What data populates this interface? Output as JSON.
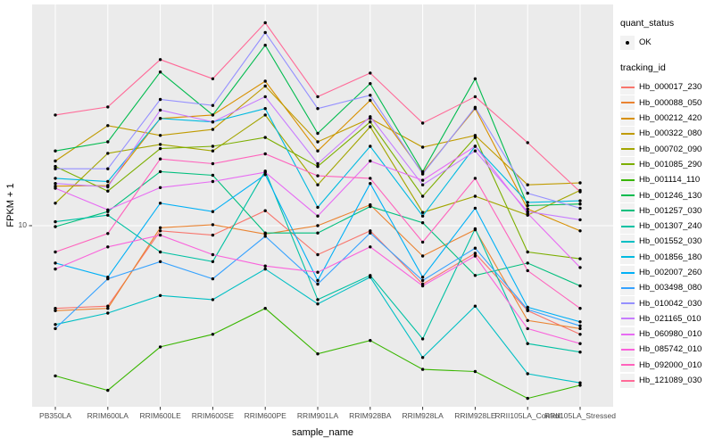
{
  "chart_data": {
    "type": "line",
    "title": "",
    "xlabel": "sample_name",
    "ylabel": "FPKM + 1",
    "y_scale": "log10",
    "y_ticks": [
      10
    ],
    "y_tick_labels": [
      "10"
    ],
    "ylim": [
      1.6,
      90
    ],
    "grid": {
      "vertical": "one white line per category",
      "horizontal": "single white line at y=10"
    },
    "panel_bg": "#EBEBEB",
    "gridline_color": "#FFFFFF",
    "point": {
      "shape": "filled-circle",
      "color": "#000000"
    },
    "legend": {
      "position": "right",
      "quant_status_title": "quant_status",
      "ok_label": "OK",
      "series_title": "tracking_id"
    },
    "categories": [
      "PB350LA",
      "RRIM600LA",
      "RRIM600LE",
      "RRIM600SE",
      "RRIM600PE",
      "RRIM901LA",
      "RRIM928BA",
      "RRIM928LA",
      "RRIM928LE",
      "RRII105LA_Control",
      "RRII105LA_Stressed"
    ],
    "series": [
      {
        "name": "Hb_000017_230",
        "color": "#F8766D",
        "values": [
          4.4,
          4.5,
          9.5,
          9.1,
          11.6,
          7.5,
          9.5,
          5.6,
          7.6,
          4.3,
          3.4
        ]
      },
      {
        "name": "Hb_000088_050",
        "color": "#EA8331",
        "values": [
          4.3,
          4.4,
          9.8,
          10.1,
          9.2,
          10.0,
          12.3,
          7.4,
          9.6,
          3.9,
          3.6
        ]
      },
      {
        "name": "Hb_000212_420",
        "color": "#D89000",
        "values": [
          14.8,
          14.9,
          29.0,
          30.0,
          42.0,
          21.0,
          34.7,
          16.9,
          32.0,
          11.8,
          9.5
        ]
      },
      {
        "name": "Hb_000322_080",
        "color": "#C09B00",
        "values": [
          19.0,
          27.0,
          24.5,
          26.0,
          40.0,
          23.0,
          29.0,
          21.8,
          24.5,
          15.0,
          15.3
        ]
      },
      {
        "name": "Hb_000702_090",
        "color": "#A3A500",
        "values": [
          12.5,
          20.5,
          22.4,
          21.0,
          30.0,
          15.0,
          26.7,
          11.4,
          13.4,
          11.1,
          14.2
        ]
      },
      {
        "name": "Hb_001085_290",
        "color": "#7CAE00",
        "values": [
          18.0,
          14.1,
          21.5,
          22.0,
          24.0,
          18.0,
          28.0,
          13.4,
          24.0,
          7.7,
          7.2
        ]
      },
      {
        "name": "Hb_001114_110",
        "color": "#39B600",
        "values": [
          2.25,
          1.95,
          3.0,
          3.4,
          4.4,
          2.8,
          3.2,
          2.4,
          2.35,
          1.8,
          2.05
        ]
      },
      {
        "name": "Hb_001246_130",
        "color": "#00BB4E",
        "values": [
          21.0,
          23.0,
          46.0,
          30.0,
          60.0,
          25.0,
          41.0,
          17.1,
          43.0,
          12.2,
          12.4
        ]
      },
      {
        "name": "Hb_001257_030",
        "color": "#00BF7D",
        "values": [
          9.9,
          11.5,
          17.1,
          16.5,
          9.3,
          9.3,
          12.1,
          10.3,
          6.1,
          6.9,
          5.5
        ]
      },
      {
        "name": "Hb_001307_240",
        "color": "#00C1A3",
        "values": [
          10.4,
          11.1,
          7.7,
          7.0,
          17.2,
          4.8,
          6.1,
          3.25,
          9.7,
          3.1,
          2.85
        ]
      },
      {
        "name": "Hb_001552_030",
        "color": "#00BFC4",
        "values": [
          3.75,
          4.2,
          5.0,
          4.8,
          6.5,
          4.6,
          6.0,
          2.7,
          4.5,
          2.3,
          2.1
        ]
      },
      {
        "name": "Hb_001856_180",
        "color": "#00BAE0",
        "values": [
          16.0,
          15.5,
          29.0,
          28.0,
          32.0,
          12.0,
          22.0,
          11.0,
          22.0,
          12.6,
          12.8
        ]
      },
      {
        "name": "Hb_002007_260",
        "color": "#00B0F6",
        "values": [
          6.9,
          6.0,
          12.5,
          11.5,
          16.6,
          5.8,
          15.2,
          6.0,
          11.9,
          4.45,
          3.85
        ]
      },
      {
        "name": "Hb_003498_080",
        "color": "#35A2FF",
        "values": [
          3.6,
          5.9,
          7.0,
          5.9,
          9.0,
          5.6,
          9.3,
          5.8,
          8.0,
          4.35,
          3.7
        ]
      },
      {
        "name": "Hb_010042_030",
        "color": "#9590FF",
        "values": [
          17.6,
          17.6,
          35.0,
          33.0,
          68.0,
          32.0,
          36.5,
          16.7,
          32.4,
          13.8,
          11.9
        ]
      },
      {
        "name": "Hb_021165_010",
        "color": "#C77CFF",
        "values": [
          15.2,
          14.7,
          31.5,
          28.0,
          36.0,
          18.5,
          29.5,
          15.0,
          21.0,
          11.5,
          10.6
        ]
      },
      {
        "name": "Hb_060980_010",
        "color": "#E76BF3",
        "values": [
          14.5,
          11.7,
          14.6,
          15.5,
          17.0,
          11.0,
          19.0,
          15.7,
          22.0,
          11.3,
          6.6
        ]
      },
      {
        "name": "Hb_085742_010",
        "color": "#FA62DB",
        "values": [
          6.5,
          8.1,
          9.1,
          7.5,
          6.7,
          6.3,
          8.1,
          5.5,
          7.4,
          3.6,
          3.1
        ]
      },
      {
        "name": "Hb_092000_010",
        "color": "#FF62BC",
        "values": [
          7.7,
          9.25,
          19.4,
          18.5,
          20.4,
          16.4,
          16.0,
          8.5,
          16.0,
          6.4,
          4.4
        ]
      },
      {
        "name": "Hb_121089_030",
        "color": "#FF6A98",
        "values": [
          30.0,
          32.5,
          52.0,
          43.0,
          75.0,
          36.0,
          45.5,
          27.7,
          36.0,
          22.8,
          14.0
        ]
      }
    ]
  }
}
